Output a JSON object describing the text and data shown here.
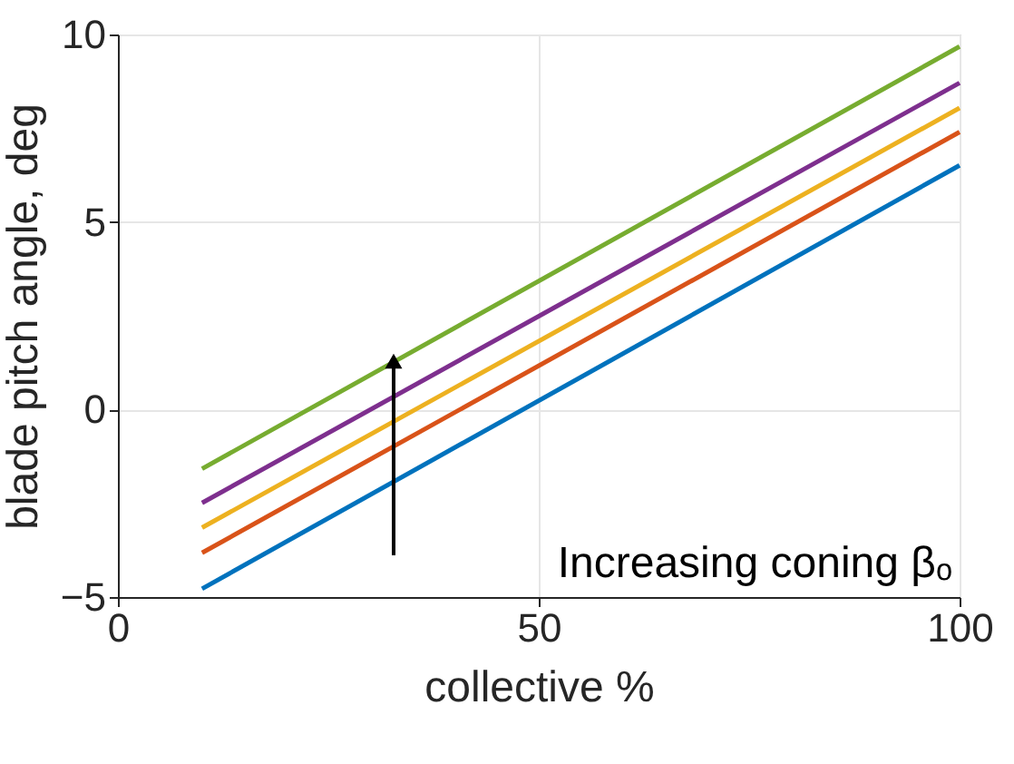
{
  "chart_data": {
    "type": "line",
    "xlabel": "collective %",
    "ylabel": "blade pitch angle, deg",
    "x": [
      10,
      100
    ],
    "series": [
      {
        "color": "#0072bd",
        "values": [
          -4.78,
          6.51
        ]
      },
      {
        "color": "#d95319",
        "values": [
          -3.82,
          7.4
        ]
      },
      {
        "color": "#edb120",
        "values": [
          -3.15,
          8.04
        ]
      },
      {
        "color": "#7e2f8e",
        "values": [
          -2.49,
          8.71
        ]
      },
      {
        "color": "#77ac30",
        "values": [
          -1.58,
          9.68
        ]
      }
    ],
    "xlim": [
      0,
      100
    ],
    "xticks": [
      0,
      50,
      100
    ],
    "ylim": [
      -5,
      10
    ],
    "yticks": [
      -5,
      0,
      5,
      10
    ],
    "grid": true,
    "legend": false,
    "line_style": "solid",
    "marker": "none",
    "annotations": [
      "Increasing coning βₒ"
    ]
  }
}
